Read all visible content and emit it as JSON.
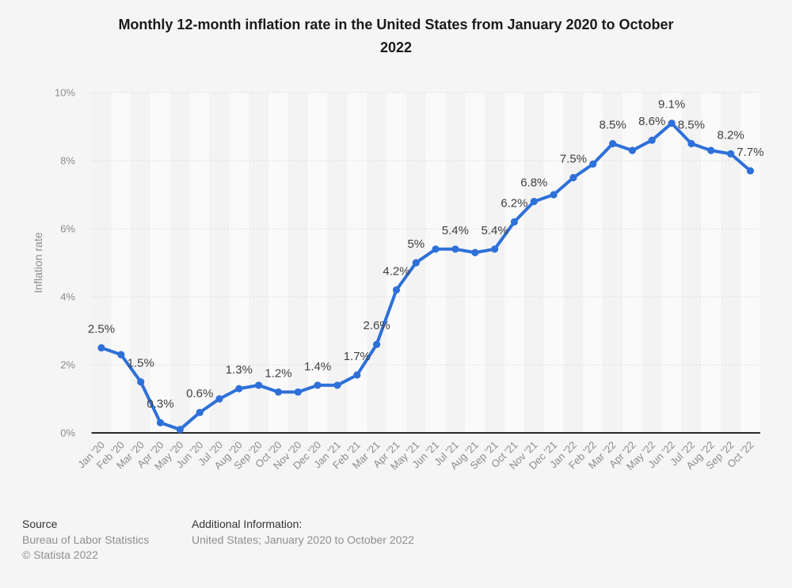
{
  "title_lines": [
    "Monthly 12-month inflation rate in the United States from January 2020 to October",
    "2022"
  ],
  "chart_data": {
    "type": "line",
    "title": "Monthly 12-month inflation rate in the United States from January 2020 to October 2022",
    "xlabel": "",
    "ylabel": "Inflation rate",
    "ylim": [
      0,
      10
    ],
    "y_ticks": [
      "0%",
      "2%",
      "4%",
      "6%",
      "8%",
      "10%"
    ],
    "grid": "horizontal-dotted",
    "legend": "none",
    "plot_bands": "alternating-vertical",
    "series_name": "Inflation rate",
    "categories": [
      "Jan '20",
      "Feb '20",
      "Mar '20",
      "Apr '20",
      "May '20",
      "Jun '20",
      "Jul '20",
      "Aug '20",
      "Sep '20",
      "Oct '20",
      "Nov '20",
      "Dec '20",
      "Jan '21",
      "Feb '21",
      "Mar '21",
      "Apr '21",
      "May '21",
      "Jun '21",
      "Jul '21",
      "Aug '21",
      "Sep '21",
      "Oct '21",
      "Nov '21",
      "Dec '21",
      "Jan '22",
      "Feb '22",
      "Mar '22",
      "Apr '22",
      "May '22",
      "Jun '22",
      "Jul '22",
      "Aug '22",
      "Sep '22",
      "Oct '22"
    ],
    "values": [
      2.5,
      2.3,
      1.5,
      0.3,
      0.1,
      0.6,
      1.0,
      1.3,
      1.4,
      1.2,
      1.2,
      1.4,
      1.4,
      1.7,
      2.6,
      4.2,
      5.0,
      5.4,
      5.4,
      5.3,
      5.4,
      6.2,
      6.8,
      7.0,
      7.5,
      7.9,
      8.5,
      8.3,
      8.6,
      9.1,
      8.5,
      8.3,
      8.2,
      7.7
    ],
    "point_labels": [
      "2.5%",
      null,
      "1.5%",
      "0.3%",
      null,
      "0.6%",
      null,
      "1.3%",
      null,
      "1.2%",
      null,
      "1.4%",
      null,
      "1.7%",
      "2.6%",
      "4.2%",
      "5%",
      null,
      "5.4%",
      null,
      "5.4%",
      "6.2%",
      "6.8%",
      null,
      "7.5%",
      null,
      "8.5%",
      null,
      "8.6%",
      "9.1%",
      "8.5%",
      null,
      "8.2%",
      "7.7%"
    ],
    "colors": {
      "line": "#2e70d9",
      "marker": "#2e70d9",
      "data_label": "#404040",
      "axis_text": "#8c8c8c",
      "gridline": "#d4d4d4",
      "axis_line": "#2b2b2b",
      "band_light": "#fafafa",
      "band_dark": "#f3f3f4",
      "background": "#f5f5f5",
      "title_text": "#1b1b1b"
    }
  },
  "footer": {
    "source_label": "Source",
    "source_value": "Bureau of Labor Statistics",
    "copyright": "© Statista 2022",
    "additional_label": "Additional Information:",
    "additional_value": "United States; January 2020 to October 2022"
  }
}
